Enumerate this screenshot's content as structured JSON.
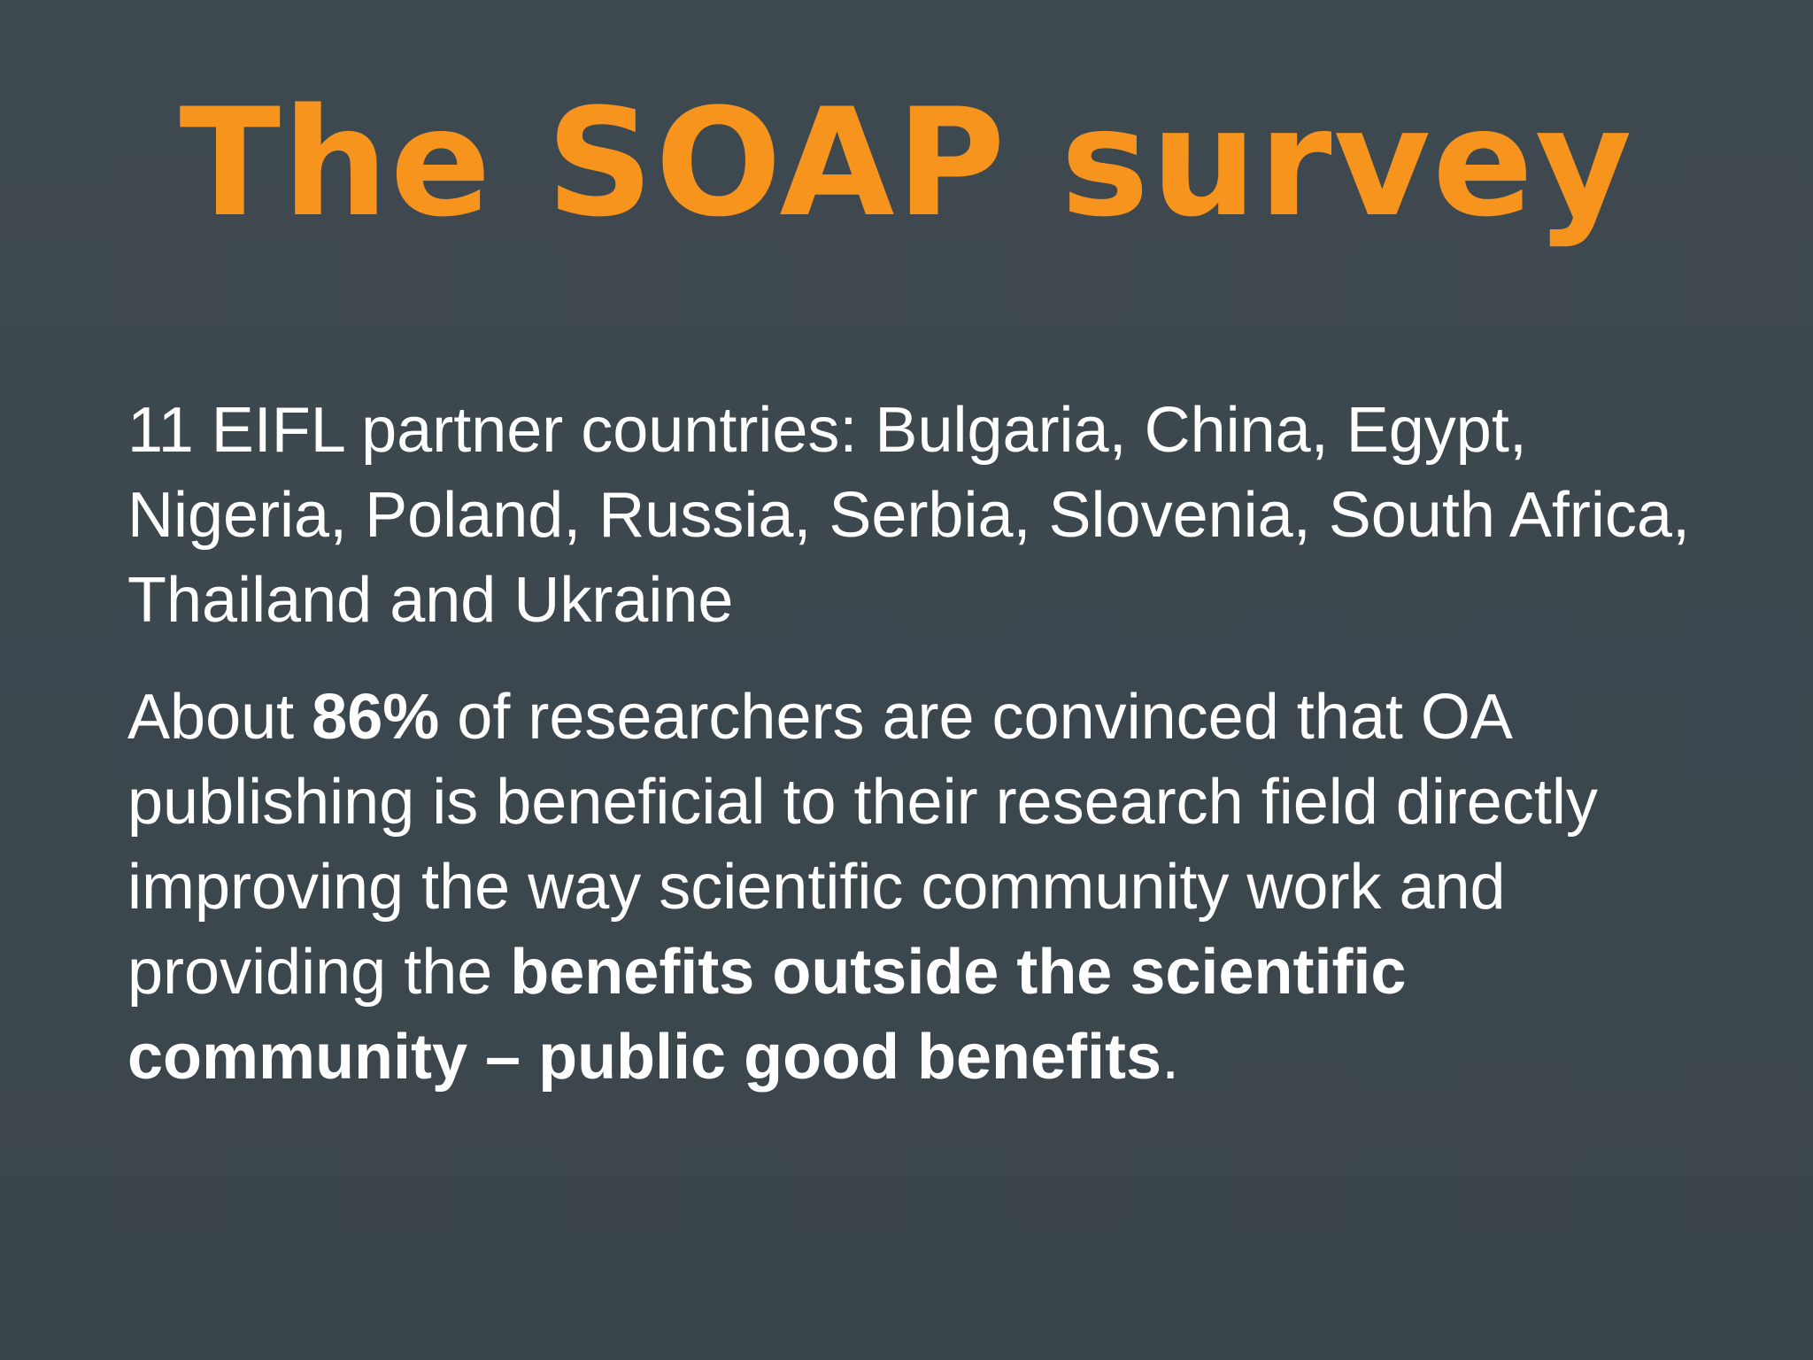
{
  "slide": {
    "title": "The SOAP survey",
    "paragraph1": {
      "text": "11 EIFL partner countries: Bulgaria, China, Egypt, Nigeria, Poland, Russia, Serbia, Slovenia, South Africa, Thailand and Ukraine"
    },
    "paragraph2": {
      "part1": "About ",
      "bold1": "86%",
      "part2": " of researchers are convinced that OA publishing is beneficial to their research field directly improving the way scientific community work and providing the ",
      "bold2": "benefits outside the scientific community – public good benefits",
      "part3": "."
    }
  },
  "colors": {
    "background": "#3d474e",
    "title": "#f7941d",
    "text": "#ffffff"
  }
}
